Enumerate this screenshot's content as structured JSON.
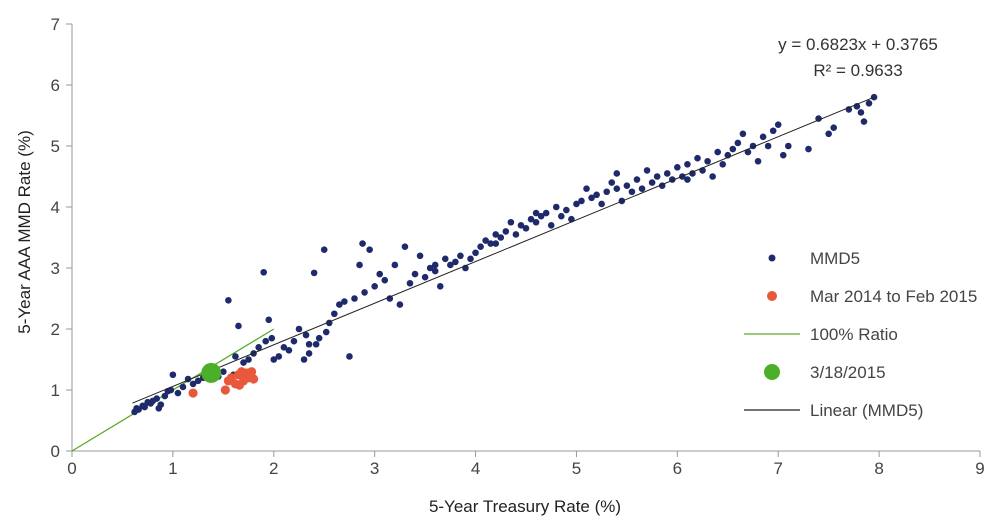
{
  "chart_data": {
    "type": "scatter",
    "xlabel": "5-Year Treasury Rate (%)",
    "ylabel": "5-Year AAA MMD Rate (%)",
    "xlim": [
      0,
      9
    ],
    "ylim": [
      0,
      7
    ],
    "xticks": [
      "0",
      "1",
      "2",
      "3",
      "4",
      "5",
      "6",
      "7",
      "8",
      "9"
    ],
    "yticks": [
      "0",
      "1",
      "2",
      "3",
      "4",
      "5",
      "6",
      "7"
    ],
    "grid": false,
    "legend_position": "right",
    "annotation": {
      "line1": "y = 0.6823x + 0.3765",
      "line2": "R² = 0.9633"
    },
    "trendline": {
      "slope": 0.6823,
      "intercept": 0.3765,
      "x_range": [
        0.6,
        7.95
      ]
    },
    "ratio_line": {
      "x": [
        0,
        2
      ],
      "y": [
        0,
        2
      ]
    },
    "colors": {
      "mmd5": "#1f2a6b",
      "recent": "#e8593c",
      "ratio": "#5aaa2a",
      "current": "#4caf2a",
      "linear": "#222222"
    },
    "legend": [
      {
        "key": "mmd5",
        "label": "MMD5",
        "symbol": "dot"
      },
      {
        "key": "recent",
        "label": "Mar 2014 to Feb 2015",
        "symbol": "dot"
      },
      {
        "key": "ratio",
        "label": "100% Ratio",
        "symbol": "line"
      },
      {
        "key": "current",
        "label": "3/18/2015",
        "symbol": "bigdot"
      },
      {
        "key": "linear",
        "label": "Linear (MMD5)",
        "symbol": "line"
      }
    ],
    "series": [
      {
        "name": "MMD5",
        "points": [
          [
            0.62,
            0.64
          ],
          [
            0.64,
            0.7
          ],
          [
            0.66,
            0.68
          ],
          [
            0.7,
            0.74
          ],
          [
            0.72,
            0.72
          ],
          [
            0.75,
            0.8
          ],
          [
            0.78,
            0.78
          ],
          [
            0.8,
            0.82
          ],
          [
            0.84,
            0.86
          ],
          [
            0.86,
            0.7
          ],
          [
            0.88,
            0.76
          ],
          [
            0.92,
            0.9
          ],
          [
            0.95,
            0.98
          ],
          [
            0.98,
            1.0
          ],
          [
            1.0,
            1.25
          ],
          [
            1.05,
            0.95
          ],
          [
            1.1,
            1.05
          ],
          [
            1.15,
            1.18
          ],
          [
            1.2,
            1.1
          ],
          [
            1.25,
            1.15
          ],
          [
            1.3,
            1.2
          ],
          [
            1.35,
            1.3
          ],
          [
            1.4,
            1.28
          ],
          [
            1.45,
            1.22
          ],
          [
            1.5,
            1.3
          ],
          [
            1.55,
            2.47
          ],
          [
            1.6,
            1.25
          ],
          [
            1.62,
            1.55
          ],
          [
            1.65,
            2.05
          ],
          [
            1.7,
            1.45
          ],
          [
            1.75,
            1.5
          ],
          [
            1.8,
            1.6
          ],
          [
            1.85,
            1.7
          ],
          [
            1.9,
            2.93
          ],
          [
            1.92,
            1.8
          ],
          [
            1.95,
            2.15
          ],
          [
            1.98,
            1.85
          ],
          [
            2.0,
            1.5
          ],
          [
            2.05,
            1.55
          ],
          [
            2.1,
            1.7
          ],
          [
            2.15,
            1.65
          ],
          [
            2.2,
            1.8
          ],
          [
            2.25,
            2.0
          ],
          [
            2.3,
            1.5
          ],
          [
            2.32,
            1.9
          ],
          [
            2.35,
            1.6
          ],
          [
            2.4,
            2.92
          ],
          [
            2.42,
            1.75
          ],
          [
            2.45,
            1.85
          ],
          [
            2.5,
            3.3
          ],
          [
            2.52,
            1.95
          ],
          [
            2.55,
            2.1
          ],
          [
            2.6,
            2.25
          ],
          [
            2.65,
            2.4
          ],
          [
            2.7,
            2.45
          ],
          [
            2.75,
            1.55
          ],
          [
            2.8,
            2.5
          ],
          [
            2.85,
            3.05
          ],
          [
            2.88,
            3.4
          ],
          [
            2.9,
            2.6
          ],
          [
            2.95,
            3.3
          ],
          [
            3.0,
            2.7
          ],
          [
            3.05,
            2.9
          ],
          [
            3.1,
            2.8
          ],
          [
            3.15,
            2.5
          ],
          [
            3.2,
            3.05
          ],
          [
            3.25,
            2.4
          ],
          [
            3.3,
            3.35
          ],
          [
            3.35,
            2.75
          ],
          [
            3.4,
            2.9
          ],
          [
            3.45,
            3.2
          ],
          [
            3.5,
            2.85
          ],
          [
            3.55,
            3.0
          ],
          [
            3.6,
            2.95
          ],
          [
            3.65,
            2.7
          ],
          [
            3.7,
            3.15
          ],
          [
            3.75,
            3.05
          ],
          [
            3.8,
            3.1
          ],
          [
            3.85,
            3.2
          ],
          [
            3.9,
            3.0
          ],
          [
            3.95,
            3.15
          ],
          [
            4.0,
            3.25
          ],
          [
            4.05,
            3.35
          ],
          [
            4.1,
            3.45
          ],
          [
            4.15,
            3.4
          ],
          [
            4.2,
            3.55
          ],
          [
            4.25,
            3.5
          ],
          [
            4.3,
            3.6
          ],
          [
            4.35,
            3.75
          ],
          [
            4.4,
            3.55
          ],
          [
            4.45,
            3.7
          ],
          [
            4.5,
            3.65
          ],
          [
            4.55,
            3.8
          ],
          [
            4.6,
            3.75
          ],
          [
            4.65,
            3.85
          ],
          [
            4.7,
            3.9
          ],
          [
            4.75,
            3.7
          ],
          [
            4.8,
            4.0
          ],
          [
            4.85,
            3.85
          ],
          [
            4.9,
            3.95
          ],
          [
            4.95,
            3.8
          ],
          [
            5.0,
            4.05
          ],
          [
            5.05,
            4.1
          ],
          [
            5.1,
            4.3
          ],
          [
            5.15,
            4.15
          ],
          [
            5.2,
            4.2
          ],
          [
            5.25,
            4.05
          ],
          [
            5.3,
            4.25
          ],
          [
            5.35,
            4.4
          ],
          [
            5.4,
            4.3
          ],
          [
            5.45,
            4.1
          ],
          [
            5.5,
            4.35
          ],
          [
            5.55,
            4.25
          ],
          [
            5.6,
            4.45
          ],
          [
            5.65,
            4.3
          ],
          [
            5.7,
            4.6
          ],
          [
            5.75,
            4.4
          ],
          [
            5.8,
            4.5
          ],
          [
            5.85,
            4.35
          ],
          [
            5.9,
            4.55
          ],
          [
            5.95,
            4.45
          ],
          [
            6.0,
            4.65
          ],
          [
            6.05,
            4.5
          ],
          [
            6.1,
            4.7
          ],
          [
            6.15,
            4.55
          ],
          [
            6.2,
            4.8
          ],
          [
            6.25,
            4.6
          ],
          [
            6.3,
            4.75
          ],
          [
            6.35,
            4.5
          ],
          [
            6.4,
            4.9
          ],
          [
            6.45,
            4.7
          ],
          [
            6.5,
            4.85
          ],
          [
            6.55,
            4.95
          ],
          [
            6.6,
            5.05
          ],
          [
            6.65,
            5.2
          ],
          [
            6.7,
            4.9
          ],
          [
            6.75,
            5.0
          ],
          [
            6.8,
            4.75
          ],
          [
            6.85,
            5.15
          ],
          [
            6.9,
            5.0
          ],
          [
            6.95,
            5.25
          ],
          [
            7.0,
            5.35
          ],
          [
            7.05,
            4.85
          ],
          [
            7.1,
            5.0
          ],
          [
            7.3,
            4.95
          ],
          [
            7.4,
            5.45
          ],
          [
            7.5,
            5.2
          ],
          [
            7.55,
            5.3
          ],
          [
            7.7,
            5.6
          ],
          [
            7.78,
            5.65
          ],
          [
            7.82,
            5.55
          ],
          [
            7.85,
            5.4
          ],
          [
            7.9,
            5.7
          ],
          [
            7.95,
            5.8
          ],
          [
            4.2,
            3.4
          ],
          [
            4.6,
            3.9
          ],
          [
            3.6,
            3.05
          ],
          [
            2.35,
            1.75
          ],
          [
            6.1,
            4.45
          ],
          [
            5.4,
            4.55
          ]
        ]
      },
      {
        "name": "Mar 2014 to Feb 2015",
        "points": [
          [
            1.2,
            0.95
          ],
          [
            1.52,
            1.0
          ],
          [
            1.55,
            1.15
          ],
          [
            1.58,
            1.2
          ],
          [
            1.62,
            1.1
          ],
          [
            1.65,
            1.25
          ],
          [
            1.68,
            1.3
          ],
          [
            1.7,
            1.15
          ],
          [
            1.72,
            1.25
          ],
          [
            1.75,
            1.2
          ],
          [
            1.78,
            1.3
          ],
          [
            1.8,
            1.18
          ],
          [
            1.66,
            1.08
          ],
          [
            1.73,
            1.28
          ]
        ]
      },
      {
        "name": "3/18/2015",
        "points": [
          [
            1.38,
            1.28
          ]
        ]
      }
    ]
  }
}
